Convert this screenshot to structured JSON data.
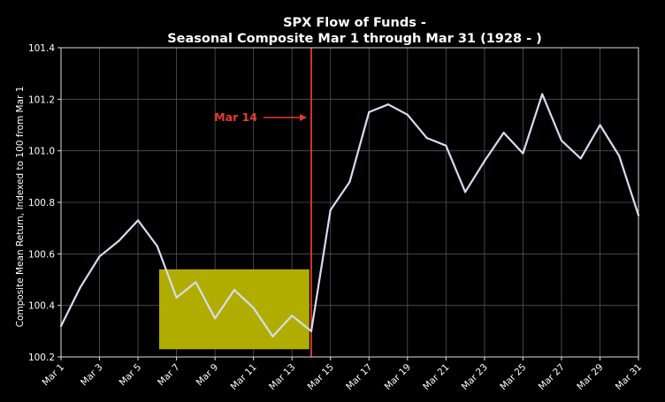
{
  "chart_data": {
    "type": "line",
    "title": "SPX Flow of Funds -",
    "subtitle": "Seasonal Composite Mar 1 through Mar 31 (1928 - )",
    "xlabel": "",
    "ylabel": "Composite Mean Return, Indexed to 100 from Mar 1",
    "ylim": [
      100.2,
      101.4
    ],
    "y_ticks": [
      "100.2",
      "100.4",
      "100.6",
      "100.8",
      "101.0",
      "101.2",
      "101.4"
    ],
    "x_ticks": [
      "Mar 1",
      "Mar 3",
      "Mar 5",
      "Mar 7",
      "Mar 9",
      "Mar 11",
      "Mar 13",
      "Mar 15",
      "Mar 17",
      "Mar 19",
      "Mar 21",
      "Mar 23",
      "Mar 25",
      "Mar 27",
      "Mar 29",
      "Mar 31"
    ],
    "grid": true,
    "x": [
      1,
      2,
      3,
      4,
      5,
      6,
      7,
      8,
      9,
      10,
      11,
      12,
      13,
      14,
      15,
      16,
      17,
      18,
      19,
      20,
      21,
      22,
      23,
      24,
      25,
      26,
      27,
      28,
      29,
      30,
      31
    ],
    "series": [
      {
        "values": [
          100.32,
          100.47,
          100.59,
          100.65,
          100.73,
          100.63,
          100.43,
          100.49,
          100.35,
          100.46,
          100.39,
          100.28,
          100.36,
          100.3,
          100.77,
          100.88,
          101.15,
          101.18,
          101.14,
          101.05,
          101.02,
          100.84,
          100.96,
          101.07,
          100.99,
          101.22,
          101.04,
          100.97,
          101.1,
          100.98,
          100.75
        ]
      }
    ],
    "highlight_region": {
      "x_start": 6.1,
      "x_end": 13.9,
      "y_start": 100.23,
      "y_end": 100.54,
      "color": "#b7b300"
    },
    "vertical_marker": {
      "x": 14,
      "color": "#e53b2f",
      "label": "Mar 14"
    },
    "colors": {
      "background": "#000000",
      "line": "#d6dcf2",
      "grid": "#555555",
      "text": "#ffffff",
      "annotation": "#e53b2f",
      "highlight": "#b7b300"
    }
  }
}
